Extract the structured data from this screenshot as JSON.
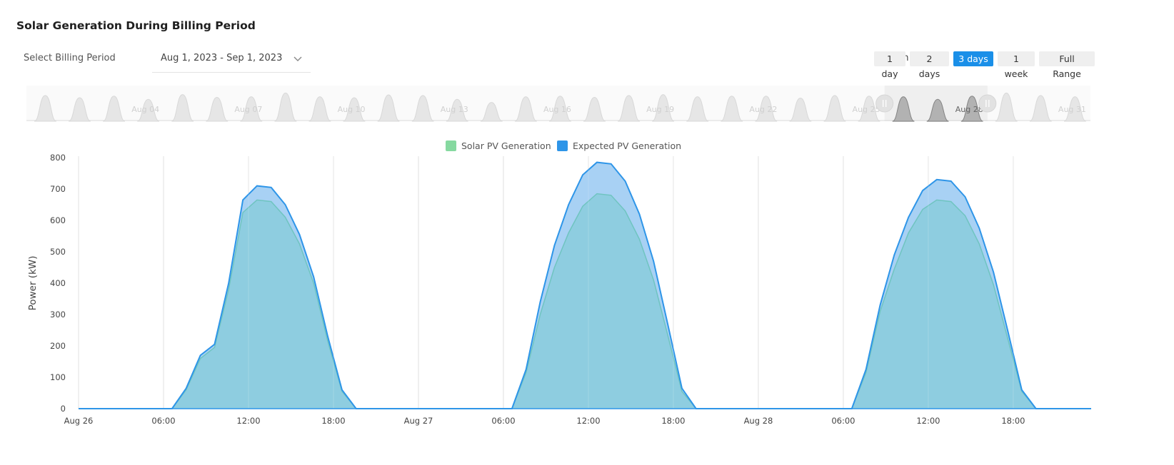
{
  "page": {
    "title": "Solar Generation During Billing Period",
    "period_label": "Select Billing Period",
    "period_value": "Aug 1, 2023 - Sep 1, 2023"
  },
  "zoom": {
    "label": "Zoom:",
    "options": [
      "1 day",
      "2 days",
      "3 days",
      "1 week",
      "Full Range"
    ],
    "active": "3 days"
  },
  "colors": {
    "solar": "#86d9a0",
    "expected": "#2e95e8",
    "expected_fill": "#a3cff3",
    "overlap_fill": "#8ecde0",
    "accent": "#1a8fe8"
  },
  "navigator": {
    "labels": [
      "Aug 04",
      "Aug 07",
      "Aug 10",
      "Aug 13",
      "Aug 16",
      "Aug 19",
      "Aug 22",
      "Aug 25",
      "Aug 28",
      "Aug 31"
    ],
    "selected_label": "Aug 28"
  },
  "chart_data": {
    "type": "area",
    "title": "",
    "ylabel": "Power (kW)",
    "ylim": [
      0,
      800
    ],
    "yticks": [
      0,
      100,
      200,
      300,
      400,
      500,
      600,
      700,
      800
    ],
    "xlim_hours": [
      0,
      71.5
    ],
    "x_ticks": [
      {
        "hour": 0,
        "label": "Aug 26"
      },
      {
        "hour": 6,
        "label": "06:00"
      },
      {
        "hour": 12,
        "label": "12:00"
      },
      {
        "hour": 18,
        "label": "18:00"
      },
      {
        "hour": 24,
        "label": "Aug 27"
      },
      {
        "hour": 30,
        "label": "06:00"
      },
      {
        "hour": 36,
        "label": "12:00"
      },
      {
        "hour": 42,
        "label": "18:00"
      },
      {
        "hour": 48,
        "label": "Aug 28"
      },
      {
        "hour": 54,
        "label": "06:00"
      },
      {
        "hour": 60,
        "label": "12:00"
      },
      {
        "hour": 66,
        "label": "18:00"
      }
    ],
    "legend": [
      "Solar PV Generation",
      "Expected PV Generation"
    ],
    "series": [
      {
        "name": "Expected PV Generation",
        "x": [
          0,
          6.6,
          7.6,
          8.6,
          9.6,
          10.6,
          11.6,
          12.6,
          13.6,
          14.6,
          15.6,
          16.6,
          17.6,
          18.6,
          19.6,
          30.6,
          31.6,
          32.6,
          33.6,
          34.6,
          35.6,
          36.6,
          37.6,
          38.6,
          39.6,
          40.6,
          41.6,
          42.6,
          43.6,
          54.6,
          55.6,
          56.6,
          57.6,
          58.6,
          59.6,
          60.6,
          61.6,
          62.6,
          63.6,
          64.6,
          65.6,
          66.6,
          67.6,
          71.5
        ],
        "y": [
          0,
          0,
          65,
          170,
          205,
          400,
          665,
          710,
          705,
          650,
          555,
          420,
          230,
          60,
          0,
          0,
          125,
          340,
          520,
          650,
          745,
          785,
          780,
          725,
          620,
          470,
          270,
          65,
          0,
          0,
          125,
          330,
          490,
          610,
          695,
          730,
          725,
          675,
          575,
          435,
          250,
          60,
          0,
          0
        ]
      },
      {
        "name": "Solar PV Generation",
        "x": [
          0,
          6.6,
          7.6,
          8.6,
          9.6,
          10.6,
          11.6,
          12.6,
          13.6,
          14.6,
          15.6,
          16.6,
          17.6,
          18.6,
          19.6,
          30.6,
          31.6,
          32.6,
          33.6,
          34.6,
          35.6,
          36.6,
          37.6,
          38.6,
          39.6,
          40.6,
          41.6,
          42.6,
          43.6,
          54.6,
          55.6,
          56.6,
          57.6,
          58.6,
          59.6,
          60.6,
          61.6,
          62.6,
          63.6,
          64.6,
          65.6,
          66.6,
          67.6,
          71.5
        ],
        "y": [
          0,
          0,
          60,
          160,
          195,
          380,
          625,
          665,
          660,
          610,
          525,
          400,
          215,
          55,
          0,
          0,
          115,
          300,
          450,
          560,
          645,
          685,
          680,
          630,
          540,
          410,
          235,
          55,
          0,
          0,
          115,
          310,
          445,
          560,
          635,
          665,
          660,
          615,
          525,
          395,
          225,
          55,
          0,
          0
        ]
      }
    ]
  }
}
